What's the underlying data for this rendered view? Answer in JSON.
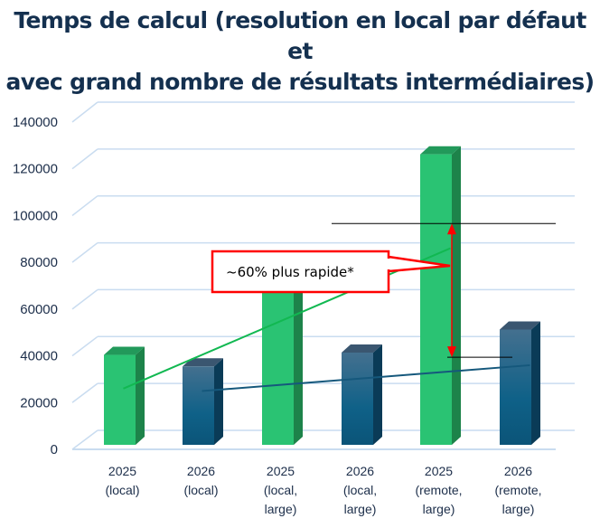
{
  "chart_data": {
    "type": "bar",
    "style": "3d-column",
    "title_lines": [
      "Temps de calcul (resolution en local par défaut et",
      "avec grand nombre de résultats intermédiaires)"
    ],
    "categories": [
      [
        "2025",
        "(local)"
      ],
      [
        "2026",
        "(local)"
      ],
      [
        "2025",
        "(local,",
        "large)"
      ],
      [
        "2026",
        "(local,",
        "large)"
      ],
      [
        "2025",
        "(remote,",
        "large)"
      ],
      [
        "2026",
        "(remote,",
        "large)"
      ]
    ],
    "values": [
      39000,
      34000,
      70000,
      40000,
      126000,
      50000
    ],
    "bar_colors": [
      "green",
      "blue",
      "green",
      "blue",
      "green",
      "blue"
    ],
    "colors": {
      "green": "#2ac373",
      "blue": "#0e5a80",
      "annotation": "#ff0000"
    },
    "ylim": [
      0,
      140000
    ],
    "yticks": [
      "0",
      "20000",
      "40000",
      "60000",
      "80000",
      "100000",
      "120000",
      "140000"
    ],
    "grid": true,
    "trendlines": [
      "green",
      "blue"
    ],
    "annotation": {
      "text": "~60% plus rapide*",
      "from_value": 96000,
      "to_value": 38000
    }
  }
}
